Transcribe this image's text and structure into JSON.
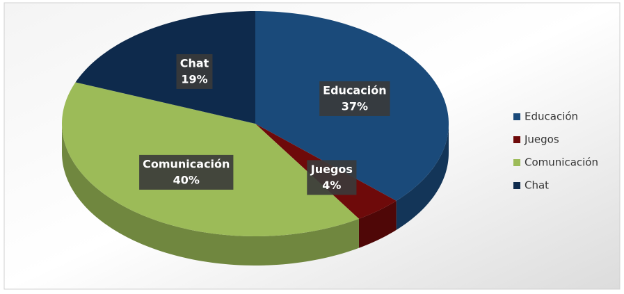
{
  "chart_data": {
    "type": "pie",
    "categories": [
      "Educación",
      "Juegos",
      "Comunicación",
      "Chat"
    ],
    "values": [
      37,
      4,
      40,
      19
    ],
    "value_labels": [
      "37%",
      "4%",
      "40%",
      "19%"
    ],
    "colors": [
      "#1a4a7a",
      "#6e0a0a",
      "#9cbb58",
      "#0e2a4c"
    ],
    "legend": "right"
  }
}
